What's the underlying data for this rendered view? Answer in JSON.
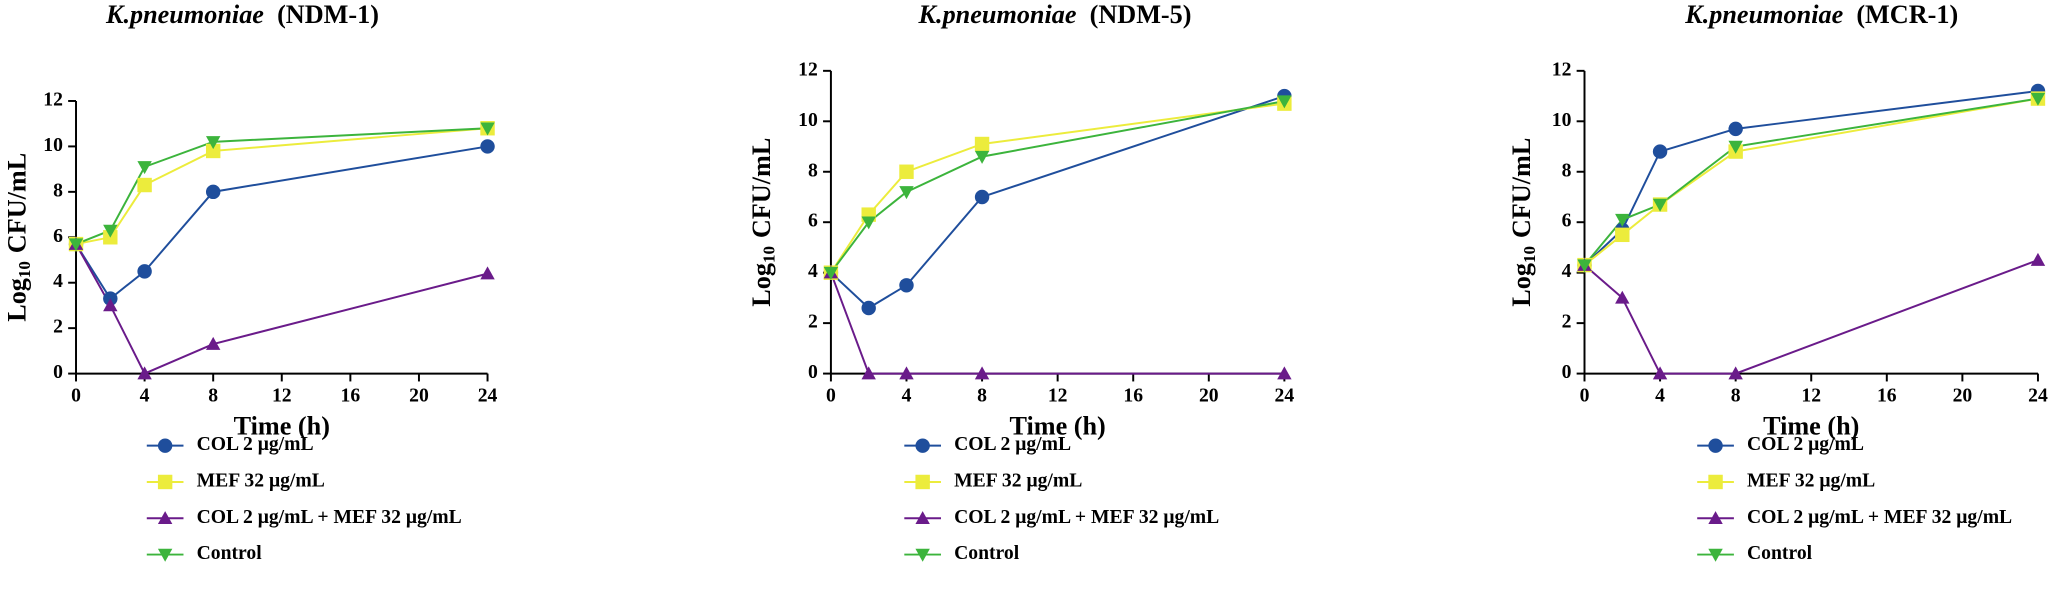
{
  "chart_data": [
    {
      "type": "line",
      "title": {
        "species": "K.pneumoniae",
        "strain": "(NDM-1)"
      },
      "xlabel": "Time (h)",
      "ylabel": {
        "base": "Log",
        "sub": "10",
        "unit": "CFU/mL"
      },
      "x": [
        0,
        2,
        4,
        8,
        24
      ],
      "xlim": [
        0,
        24
      ],
      "xticks": [
        0,
        4,
        8,
        12,
        16,
        20,
        24
      ],
      "ylim": [
        0,
        12
      ],
      "yticks": [
        0,
        2,
        4,
        6,
        8,
        10,
        12
      ],
      "series": [
        {
          "name": "COL 2 μg/mL",
          "color": "#1f4e9c",
          "marker": "circle",
          "values": [
            5.7,
            3.3,
            4.5,
            8.0,
            10.0
          ]
        },
        {
          "name": "MEF 32 μg/mL",
          "color": "#ecec3c",
          "marker": "square",
          "values": [
            5.7,
            6.0,
            8.3,
            9.8,
            10.8
          ]
        },
        {
          "name": "COL 2 μg/mL + MEF 32 μg/mL",
          "color": "#6a1b8a",
          "marker": "triangle-up",
          "values": [
            5.7,
            3.0,
            0,
            1.3,
            4.4
          ]
        },
        {
          "name": "Control",
          "color": "#3cb43c",
          "marker": "triangle-down",
          "values": [
            5.7,
            6.3,
            9.1,
            10.2,
            10.8
          ]
        }
      ]
    },
    {
      "type": "line",
      "title": {
        "species": "K.pneumoniae",
        "strain": "(NDM-5)"
      },
      "xlabel": "Time (h)",
      "ylabel": {
        "base": "Log",
        "sub": "10",
        "unit": "CFU/mL"
      },
      "x": [
        0,
        2,
        4,
        8,
        24
      ],
      "xlim": [
        0,
        24
      ],
      "xticks": [
        0,
        4,
        8,
        12,
        16,
        20,
        24
      ],
      "ylim": [
        0,
        12
      ],
      "yticks": [
        0,
        2,
        4,
        6,
        8,
        10,
        12
      ],
      "series": [
        {
          "name": "COL 2 μg/mL",
          "color": "#1f4e9c",
          "marker": "circle",
          "values": [
            4.0,
            2.6,
            3.5,
            7.0,
            11.0
          ]
        },
        {
          "name": "MEF 32 μg/mL",
          "color": "#ecec3c",
          "marker": "square",
          "values": [
            4.0,
            6.3,
            8.0,
            9.1,
            10.7
          ]
        },
        {
          "name": "COL 2 μg/mL + MEF 32 μg/mL",
          "color": "#6a1b8a",
          "marker": "triangle-up",
          "values": [
            4.0,
            0,
            0,
            0,
            0
          ]
        },
        {
          "name": "Control",
          "color": "#3cb43c",
          "marker": "triangle-down",
          "values": [
            4.0,
            6.0,
            7.2,
            8.6,
            10.8
          ]
        }
      ]
    },
    {
      "type": "line",
      "title": {
        "species": "K.pneumoniae",
        "strain": "(MCR-1)"
      },
      "xlabel": "Time (h)",
      "ylabel": {
        "base": "Log",
        "sub": "10",
        "unit": "CFU/mL"
      },
      "x": [
        0,
        2,
        4,
        8,
        24
      ],
      "xlim": [
        0,
        24
      ],
      "xticks": [
        0,
        4,
        8,
        12,
        16,
        20,
        24
      ],
      "ylim": [
        0,
        12
      ],
      "yticks": [
        0,
        2,
        4,
        6,
        8,
        10,
        12
      ],
      "series": [
        {
          "name": "COL 2 μg/mL",
          "color": "#1f4e9c",
          "marker": "circle",
          "values": [
            4.3,
            5.7,
            8.8,
            9.7,
            11.2
          ]
        },
        {
          "name": "MEF 32 μg/mL",
          "color": "#ecec3c",
          "marker": "square",
          "values": [
            4.3,
            5.5,
            6.7,
            8.8,
            10.9
          ]
        },
        {
          "name": "COL 2 μg/mL + MEF 32 μg/mL",
          "color": "#6a1b8a",
          "marker": "triangle-up",
          "values": [
            4.3,
            3.0,
            0,
            0,
            4.5
          ]
        },
        {
          "name": "Control",
          "color": "#3cb43c",
          "marker": "triangle-down",
          "values": [
            4.3,
            6.1,
            6.7,
            9.0,
            10.9
          ]
        }
      ]
    }
  ]
}
